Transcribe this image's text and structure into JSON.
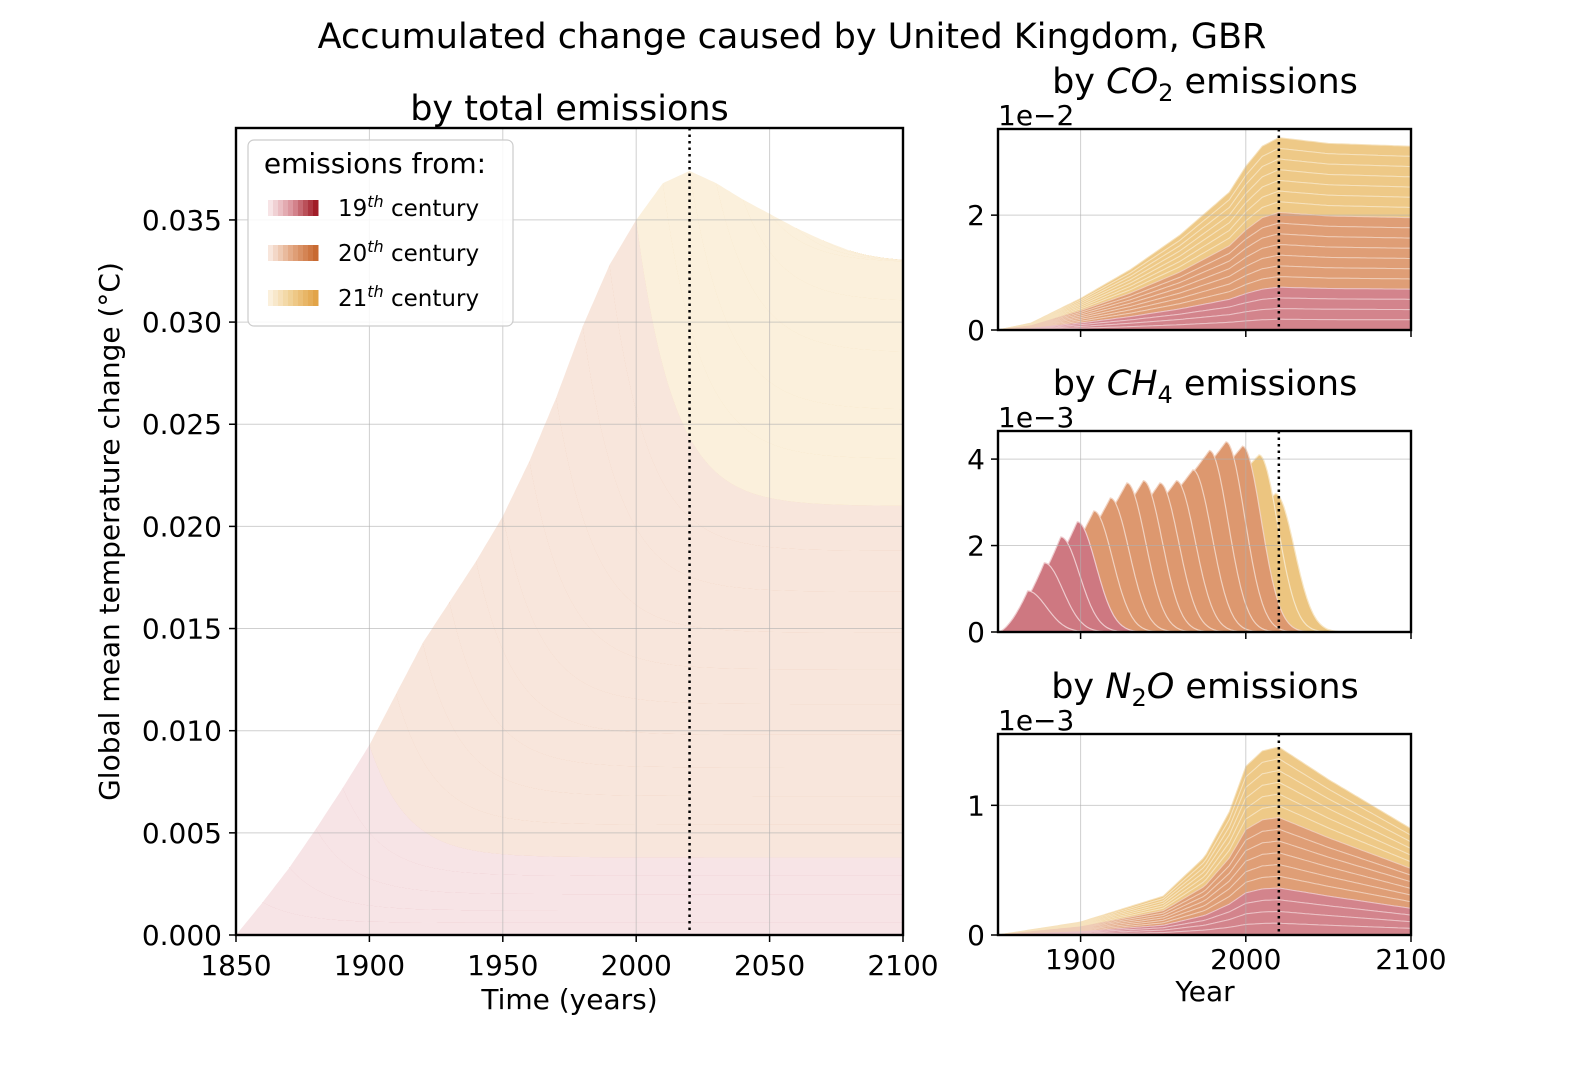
{
  "figure": {
    "title": "Accumulated change caused by United Kingdom, GBR"
  },
  "legend": {
    "title": "emissions from:",
    "entries": [
      {
        "ordinal": "19",
        "sup": "th",
        "suffix": " century",
        "colors": [
          "#f7e4e6",
          "#d98f97",
          "#a11d28"
        ]
      },
      {
        "ordinal": "20",
        "sup": "th",
        "suffix": " century",
        "colors": [
          "#f8e6dc",
          "#e2a47e",
          "#c86a32"
        ]
      },
      {
        "ordinal": "21",
        "sup": "th",
        "suffix": " century",
        "colors": [
          "#fbf0dc",
          "#efcd8e",
          "#e2a448"
        ]
      }
    ]
  },
  "chart_data": [
    {
      "id": "total",
      "type": "area",
      "title": "by total emissions",
      "xlabel": "Time (years)",
      "ylabel": "Global mean temperature change (°C)",
      "xlim": [
        1850,
        2100
      ],
      "ylim": [
        0,
        0.0395
      ],
      "x_ticks": [
        "1850",
        "1900",
        "1950",
        "2000",
        "2050",
        "2100"
      ],
      "y_ticks": [
        "0.000",
        "0.005",
        "0.010",
        "0.015",
        "0.020",
        "0.025",
        "0.030",
        "0.035"
      ],
      "marker_year": 2020,
      "grid": true,
      "legend_position": "top-left",
      "stacked_by": "emission decade",
      "decades": [
        1850,
        1860,
        1870,
        1880,
        1890,
        1900,
        1910,
        1920,
        1930,
        1940,
        1950,
        1960,
        1970,
        1980,
        1990,
        2000,
        2010,
        2020,
        2030,
        2040,
        2050,
        2060,
        2070,
        2080,
        2090
      ],
      "peak": [
        0.0016,
        0.0033,
        0.0052,
        0.0072,
        0.0093,
        0.0118,
        0.0143,
        0.0163,
        0.0183,
        0.0205,
        0.0232,
        0.0263,
        0.0298,
        0.0328,
        0.035,
        0.0368,
        0.0374,
        0.0368,
        0.036,
        0.0353,
        0.0346,
        0.034,
        0.0335,
        0.0331,
        0.0329
      ],
      "end": [
        0.0006,
        0.0012,
        0.002,
        0.0029,
        0.0038,
        0.0054,
        0.0068,
        0.0082,
        0.0098,
        0.0113,
        0.013,
        0.0148,
        0.0168,
        0.0188,
        0.021,
        0.0233,
        0.0257,
        0.0285,
        0.031,
        0.0329
      ]
    },
    {
      "id": "co2",
      "type": "area",
      "title_pre": "by ",
      "title_main": "CO",
      "title_sub": "2",
      "title_post": " emissions",
      "offset_text": "1e−2",
      "xlim": [
        1850,
        2100
      ],
      "ylim": [
        0,
        3.5
      ],
      "y_ticks": [
        "0",
        "2"
      ],
      "marker_year": 2020,
      "grid": true,
      "envelope_x": [
        1850,
        1870,
        1900,
        1930,
        1960,
        1990,
        2000,
        2010,
        2020,
        2050,
        2100
      ],
      "envelope_y": [
        0,
        0.12,
        0.55,
        1.05,
        1.65,
        2.4,
        2.85,
        3.2,
        3.35,
        3.25,
        3.2
      ]
    },
    {
      "id": "ch4",
      "type": "area",
      "title_pre": "by ",
      "title_main": "CH",
      "title_sub": "4",
      "title_post": " emissions",
      "offset_text": "1e−3",
      "xlim": [
        1850,
        2100
      ],
      "ylim": [
        0,
        4.65
      ],
      "y_ticks": [
        "0",
        "2",
        "4"
      ],
      "marker_year": 2020,
      "grid": true,
      "decades": [
        1860,
        1870,
        1880,
        1890,
        1900,
        1910,
        1920,
        1930,
        1940,
        1950,
        1960,
        1970,
        1980,
        1990,
        2000,
        2010
      ],
      "peak": [
        0.95,
        1.6,
        2.2,
        2.55,
        2.8,
        3.1,
        3.45,
        3.5,
        3.45,
        3.5,
        3.75,
        4.2,
        4.4,
        4.3,
        4.1,
        3.2
      ]
    },
    {
      "id": "n2o",
      "type": "area",
      "title_pre": "by ",
      "title_main": "N",
      "title_sub": "2",
      "title_main2": "O",
      "title_post": " emissions",
      "offset_text": "1e−3",
      "xlabel": "Year",
      "xlim": [
        1850,
        2100
      ],
      "ylim": [
        0,
        1.55
      ],
      "x_ticks": [
        "1900",
        "2000",
        "2100"
      ],
      "y_ticks": [
        "0",
        "1"
      ],
      "marker_year": 2020,
      "grid": true,
      "envelope_x": [
        1850,
        1900,
        1950,
        1975,
        1990,
        2000,
        2010,
        2020,
        2050,
        2100
      ],
      "envelope_y": [
        0,
        0.1,
        0.3,
        0.6,
        0.95,
        1.3,
        1.42,
        1.45,
        1.2,
        0.82
      ]
    }
  ]
}
